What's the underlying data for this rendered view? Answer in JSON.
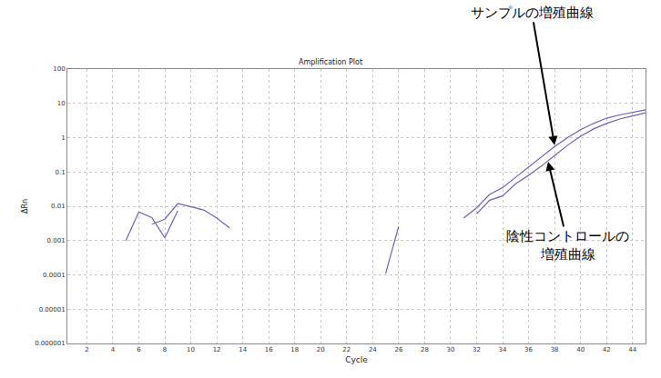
{
  "chart_data": {
    "type": "line",
    "title": "Amplification Plot",
    "x_label": "Cycle",
    "y_label": "ΔRn",
    "x": [
      1,
      2,
      3,
      4,
      5,
      6,
      7,
      8,
      9,
      10,
      11,
      12,
      13,
      14,
      15,
      16,
      17,
      18,
      19,
      20,
      21,
      22,
      23,
      24,
      25,
      26,
      27,
      28,
      29,
      30,
      31,
      32,
      33,
      34,
      35,
      36,
      37,
      38,
      39,
      40,
      41,
      42,
      43,
      44,
      45
    ],
    "series": [
      {
        "color": "#6b63b5",
        "values": [
          null,
          null,
          null,
          null,
          0.001,
          0.0068,
          0.0047,
          0.0012,
          0.0075,
          null,
          null,
          null,
          null,
          null,
          null,
          null,
          null,
          null,
          null,
          null,
          null,
          null,
          null,
          null,
          0.00011,
          0.0026,
          null,
          null,
          null,
          null,
          0.0045,
          0.009,
          0.022,
          0.035,
          0.07,
          0.14,
          0.28,
          0.55,
          1.0,
          1.7,
          2.6,
          3.7,
          4.6,
          5.4,
          6.5
        ]
      },
      {
        "color": "#6b63b5",
        "values": [
          null,
          null,
          null,
          null,
          null,
          null,
          0.003,
          0.0042,
          0.012,
          0.0095,
          0.0078,
          0.0045,
          0.0023,
          null,
          null,
          null,
          null,
          null,
          null,
          null,
          null,
          null,
          null,
          null,
          null,
          null,
          null,
          null,
          null,
          null,
          null,
          0.006,
          0.015,
          0.02,
          0.045,
          0.08,
          0.15,
          0.3,
          0.6,
          1.1,
          1.8,
          2.6,
          3.5,
          4.3,
          5.3
        ]
      }
    ],
    "xlim": [
      0.5,
      45
    ],
    "xticks": [
      2,
      4,
      6,
      8,
      10,
      12,
      14,
      16,
      18,
      20,
      22,
      24,
      26,
      28,
      30,
      32,
      34,
      36,
      38,
      40,
      42,
      44
    ],
    "ylim": [
      1e-06,
      100
    ],
    "yticks": [
      1e-06,
      1e-05,
      0.0001,
      0.001,
      0.01,
      0.1,
      1,
      10,
      100
    ],
    "log": "y",
    "grid": true,
    "annotations": [
      {
        "text": "サンプルの増殖曲線",
        "x": 38,
        "y": 0.6
      },
      {
        "text": "陰性コントロールの\n増殖曲線",
        "x": 37.5,
        "y": 0.2
      }
    ]
  }
}
